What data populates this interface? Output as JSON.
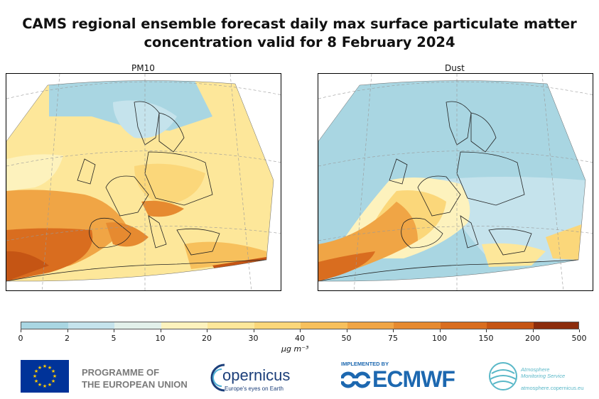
{
  "title_line1": "CAMS regional ensemble forecast daily max surface particulate matter",
  "title_line2": "concentration valid for 8 February 2024",
  "panels": [
    {
      "id": "pm10",
      "label": "PM10"
    },
    {
      "id": "dust",
      "label": "Dust"
    }
  ],
  "colorbar": {
    "unit": "µg m⁻³",
    "ticks": [
      "0",
      "2",
      "5",
      "10",
      "20",
      "30",
      "40",
      "50",
      "75",
      "100",
      "150",
      "200",
      "500"
    ],
    "colors": [
      "#a9d6e2",
      "#c5e3ec",
      "#e2f0ea",
      "#fdf2bd",
      "#fde79a",
      "#fbd77a",
      "#f7c05c",
      "#f0a545",
      "#e68a30",
      "#d96d1f",
      "#c55514",
      "#8c2d0d"
    ]
  },
  "logos": {
    "eu_line1": "PROGRAMME OF",
    "eu_line2": "THE EUROPEAN UNION",
    "copernicus": "opernicus",
    "copernicus_tagline": "Europe's eyes on Earth",
    "implemented_by": "IMPLEMENTED BY",
    "ecmwf": "ECMWF",
    "ams_line1": "Atmosphere",
    "ams_line2": "Monitoring Service",
    "ams_url": "atmosphere.copernicus.eu"
  }
}
